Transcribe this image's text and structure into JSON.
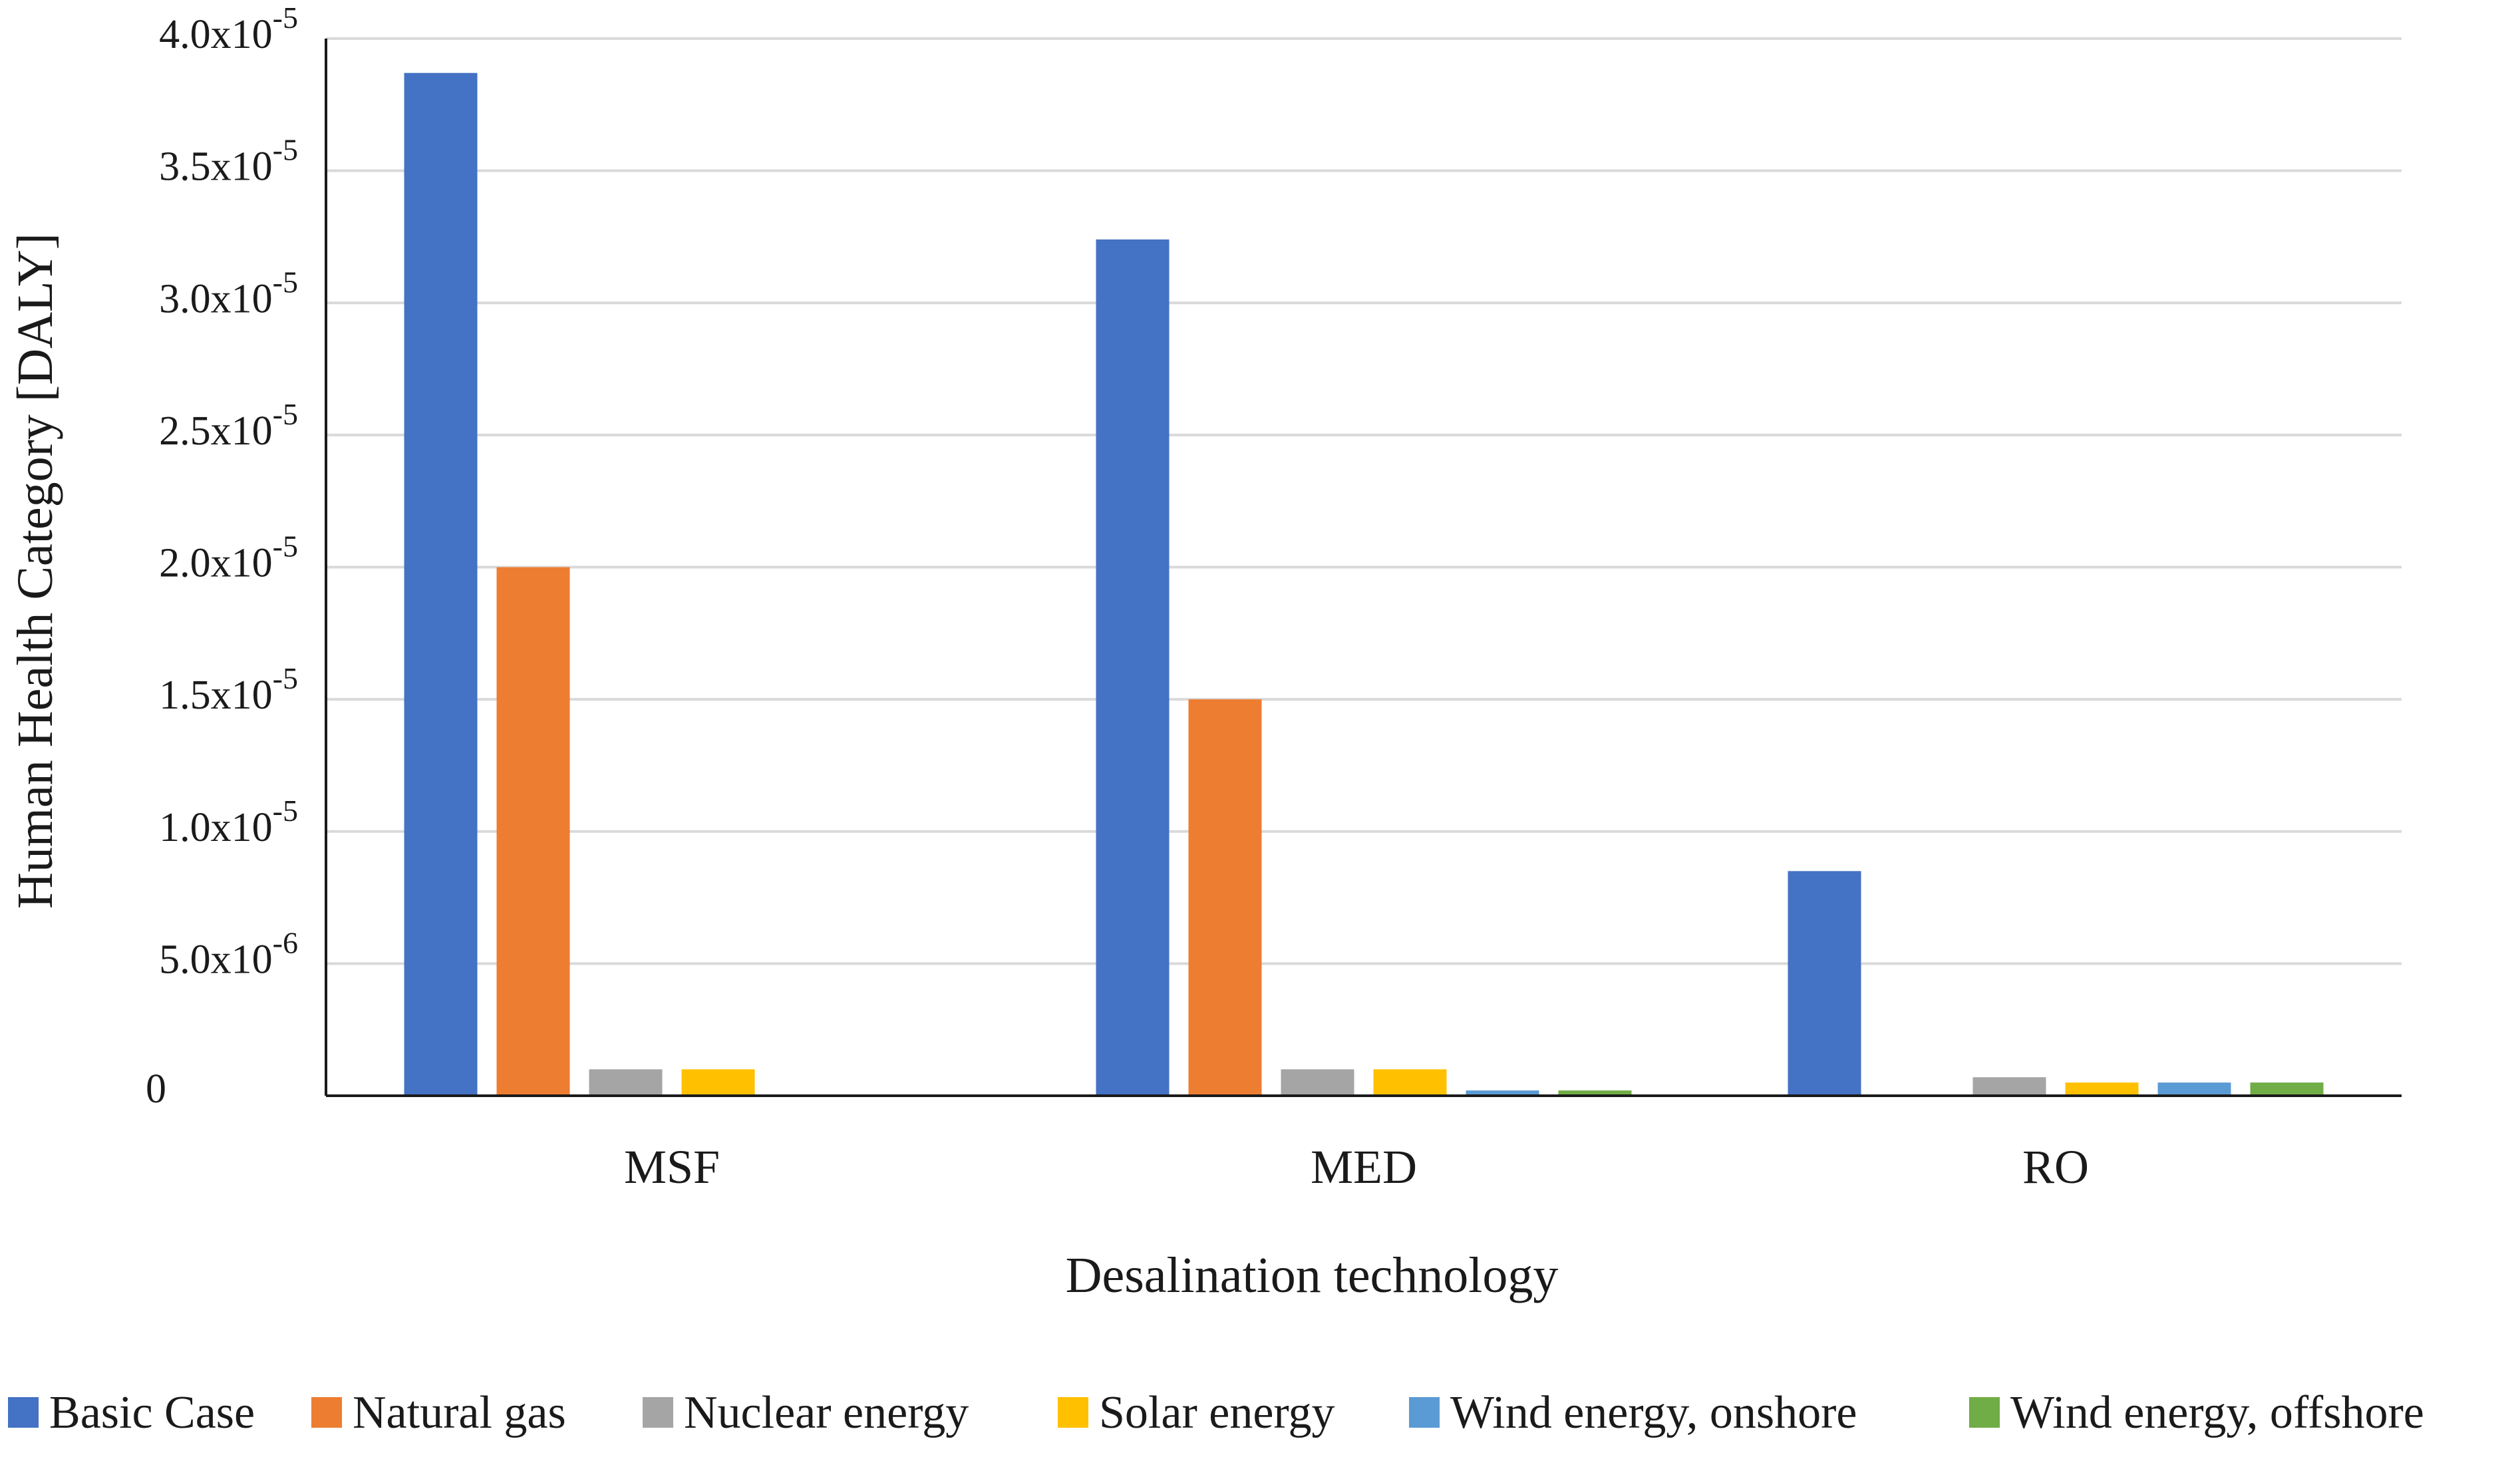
{
  "chart_data": {
    "type": "bar",
    "title": "",
    "xlabel": "Desalination technology",
    "ylabel": "Human Health Category [DALY]",
    "categories": [
      "MSF",
      "MED",
      "RO"
    ],
    "ylim": [
      0,
      4e-05
    ],
    "grid": true,
    "legend_position": "bottom",
    "yticks": [
      {
        "value": 0,
        "mantissa": "0",
        "exponent": ""
      },
      {
        "value": 5e-06,
        "mantissa": "5.0x10",
        "exponent": "-6"
      },
      {
        "value": 1e-05,
        "mantissa": "1.0x10",
        "exponent": "-5"
      },
      {
        "value": 1.5e-05,
        "mantissa": "1.5x10",
        "exponent": "-5"
      },
      {
        "value": 2e-05,
        "mantissa": "2.0x10",
        "exponent": "-5"
      },
      {
        "value": 2.5e-05,
        "mantissa": "2.5x10",
        "exponent": "-5"
      },
      {
        "value": 3e-05,
        "mantissa": "3.0x10",
        "exponent": "-5"
      },
      {
        "value": 3.5e-05,
        "mantissa": "3.5x10",
        "exponent": "-5"
      },
      {
        "value": 4e-05,
        "mantissa": "4.0x10",
        "exponent": "-5"
      }
    ],
    "series": [
      {
        "name": "Basic Case",
        "color": "#4472C4",
        "values": [
          3.87e-05,
          3.24e-05,
          8.5e-06
        ]
      },
      {
        "name": "Natural gas",
        "color": "#ED7D31",
        "values": [
          2e-05,
          1.5e-05,
          0
        ]
      },
      {
        "name": "Nuclear energy",
        "color": "#A5A5A5",
        "values": [
          1e-06,
          1e-06,
          7e-07
        ]
      },
      {
        "name": "Solar energy",
        "color": "#FFC000",
        "values": [
          1e-06,
          1e-06,
          5e-07
        ]
      },
      {
        "name": "Wind energy, onshore",
        "color": "#5B9BD5",
        "values": [
          0,
          2e-07,
          5e-07
        ]
      },
      {
        "name": "Wind energy, offshore",
        "color": "#70AD47",
        "values": [
          0,
          2e-07,
          5e-07
        ]
      }
    ]
  },
  "colors": {
    "gridline": "#D9D9D9",
    "axis": "#1a1a1a",
    "text": "#1a1a1a"
  }
}
